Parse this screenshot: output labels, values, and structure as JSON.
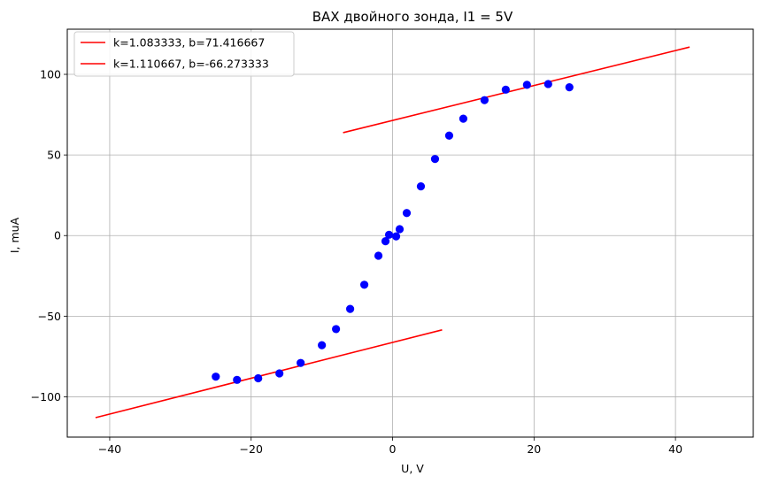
{
  "chart_data": {
    "type": "scatter",
    "title": "ВАХ двойного зонда, I1 = 5V",
    "xlabel": "U, V",
    "ylabel": "I, muA",
    "xlim": [
      -46,
      51
    ],
    "ylim": [
      -125,
      128
    ],
    "xticks": [
      -40,
      -20,
      0,
      20,
      40
    ],
    "yticks": [
      -100,
      -50,
      0,
      50,
      100
    ],
    "xtick_labels": [
      "−40",
      "−20",
      "0",
      "20",
      "40"
    ],
    "ytick_labels": [
      "−100",
      "−50",
      "0",
      "50",
      "100"
    ],
    "grid": true,
    "legend_position": "top-left",
    "points": {
      "color": "#0000ff",
      "x": [
        -25,
        -22,
        -19,
        -16,
        -13,
        -10,
        -8,
        -6,
        -4,
        -2,
        -1,
        -0.5,
        0.5,
        1,
        2,
        4,
        6,
        8,
        10,
        13,
        16,
        19,
        22,
        25
      ],
      "y": [
        -87.5,
        -89.5,
        -88.5,
        -85.5,
        -79,
        -68,
        -58,
        -45.5,
        -30.5,
        -12.5,
        -3.5,
        0.5,
        -0.5,
        4,
        14,
        30.5,
        47.5,
        62,
        72.5,
        84,
        90.5,
        93.5,
        94,
        92
      ]
    },
    "series": [
      {
        "name": "k=1.083333, b=71.416667",
        "type": "line",
        "color": "#ff0000",
        "x": [
          -7,
          42
        ],
        "y": [
          63.83,
          116.92
        ]
      },
      {
        "name": "k=1.110667, b=-66.273333",
        "type": "line",
        "color": "#ff0000",
        "x": [
          -42,
          7
        ],
        "y": [
          -112.92,
          -58.5
        ]
      }
    ]
  }
}
